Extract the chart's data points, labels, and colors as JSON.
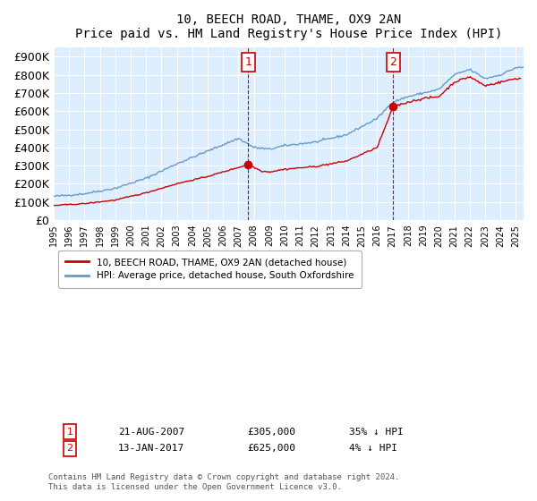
{
  "title": "10, BEECH ROAD, THAME, OX9 2AN",
  "subtitle": "Price paid vs. HM Land Registry's House Price Index (HPI)",
  "ylabel_ticks": [
    "£0",
    "£100K",
    "£200K",
    "£300K",
    "£400K",
    "£500K",
    "£600K",
    "£700K",
    "£800K",
    "£900K"
  ],
  "ytick_vals": [
    0,
    100000,
    200000,
    300000,
    400000,
    500000,
    600000,
    700000,
    800000,
    900000
  ],
  "ylim": [
    0,
    950000
  ],
  "xlim_start": 1995.0,
  "xlim_end": 2025.5,
  "purchase1_date": 2007.64,
  "purchase1_price": 305000,
  "purchase2_date": 2017.04,
  "purchase2_price": 625000,
  "legend_line1": "10, BEECH ROAD, THAME, OX9 2AN (detached house)",
  "legend_line2": "HPI: Average price, detached house, South Oxfordshire",
  "annotation1_label": "1",
  "annotation1_date": "21-AUG-2007",
  "annotation1_price": "£305,000",
  "annotation1_pct": "35% ↓ HPI",
  "annotation2_label": "2",
  "annotation2_date": "13-JAN-2017",
  "annotation2_price": "£625,000",
  "annotation2_pct": "4% ↓ HPI",
  "footer": "Contains HM Land Registry data © Crown copyright and database right 2024.\nThis data is licensed under the Open Government Licence v3.0.",
  "color_red": "#cc0000",
  "color_blue": "#6699cc",
  "color_bg": "#ddeeff",
  "color_marker_box": "#cc0000"
}
